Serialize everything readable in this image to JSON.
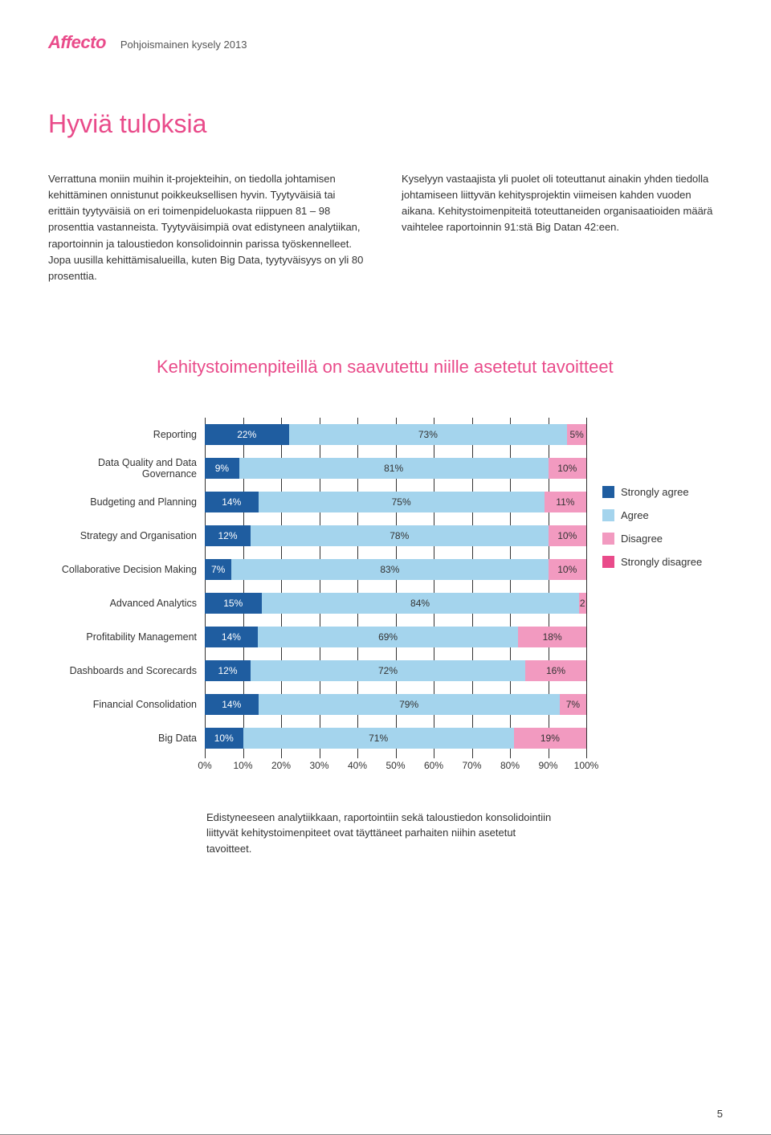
{
  "header": {
    "logo": "Affecto",
    "subtitle": "Pohjoismainen kysely 2013"
  },
  "title": "Hyviä tuloksia",
  "body": {
    "col1": "Verrattuna moniin muihin it-projekteihin, on tiedolla johtamisen kehittäminen onnistunut poikkeuksellisen hyvin. Tyytyväisiä tai erittäin tyytyväisiä on eri toimenpideluokasta riippuen 81 – 98 prosenttia vastanneista. Tyytyväisimpiä ovat edistyneen analytiikan, raportoinnin ja taloustiedon konsolidoinnin parissa työskennelleet. Jopa uusilla kehittämisalueilla, kuten Big Data, tyytyväisyys on yli 80 prosenttia.",
    "col2": "Kyselyyn vastaajista yli puolet oli toteuttanut ainakin yhden tiedolla johtamiseen liittyvän kehitysprojektin viimeisen kahden vuoden aikana. Kehitystoimenpiteitä toteuttaneiden organisaatioiden määrä vaihtelee raportoinnin 91:stä Big Datan 42:een."
  },
  "chart": {
    "title": "Kehitystoimenpiteillä on saavutettu niille asetetut tavoitteet",
    "colors": {
      "strongly_agree": "#1f5da0",
      "agree": "#a4d4ed",
      "disagree": "#f29ac0",
      "strongly_disagree": "#e94b8a",
      "grid": "#333333",
      "background": "#ffffff"
    },
    "legend": {
      "strongly_agree": "Strongly agree",
      "agree": "Agree",
      "disagree": "Disagree",
      "strongly_disagree": "Strongly disagree"
    },
    "xticks": [
      "0%",
      "10%",
      "20%",
      "30%",
      "40%",
      "50%",
      "60%",
      "70%",
      "80%",
      "90%",
      "100%"
    ],
    "rows": [
      {
        "label": "Reporting",
        "segments": [
          {
            "key": "strongly_agree",
            "value": 22,
            "text": "22%"
          },
          {
            "key": "agree",
            "value": 73,
            "text": "73%"
          },
          {
            "key": "disagree",
            "value": 5,
            "text": "5%"
          }
        ]
      },
      {
        "label": "Data Quality and Data Governance",
        "segments": [
          {
            "key": "strongly_agree",
            "value": 9,
            "text": "9%"
          },
          {
            "key": "agree",
            "value": 81,
            "text": "81%"
          },
          {
            "key": "disagree",
            "value": 10,
            "text": "10%"
          }
        ]
      },
      {
        "label": "Budgeting and Planning",
        "segments": [
          {
            "key": "strongly_agree",
            "value": 14,
            "text": "14%"
          },
          {
            "key": "agree",
            "value": 75,
            "text": "75%"
          },
          {
            "key": "disagree",
            "value": 11,
            "text": "11%"
          }
        ]
      },
      {
        "label": "Strategy and Organisation",
        "segments": [
          {
            "key": "strongly_agree",
            "value": 12,
            "text": "12%"
          },
          {
            "key": "agree",
            "value": 78,
            "text": "78%"
          },
          {
            "key": "disagree",
            "value": 10,
            "text": "10%"
          }
        ]
      },
      {
        "label": "Collaborative Decision Making",
        "segments": [
          {
            "key": "strongly_agree",
            "value": 7,
            "text": "7%"
          },
          {
            "key": "agree",
            "value": 83,
            "text": "83%"
          },
          {
            "key": "disagree",
            "value": 10,
            "text": "10%"
          }
        ]
      },
      {
        "label": "Advanced Analytics",
        "segments": [
          {
            "key": "strongly_agree",
            "value": 15,
            "text": "15%"
          },
          {
            "key": "agree",
            "value": 84,
            "text": "84%"
          },
          {
            "key": "disagree",
            "value": 2,
            "text": "2"
          }
        ]
      },
      {
        "label": "Profitability Management",
        "segments": [
          {
            "key": "strongly_agree",
            "value": 14,
            "text": "14%"
          },
          {
            "key": "agree",
            "value": 69,
            "text": "69%"
          },
          {
            "key": "disagree",
            "value": 18,
            "text": "18%"
          }
        ]
      },
      {
        "label": "Dashboards and Scorecards",
        "segments": [
          {
            "key": "strongly_agree",
            "value": 12,
            "text": "12%"
          },
          {
            "key": "agree",
            "value": 72,
            "text": "72%"
          },
          {
            "key": "disagree",
            "value": 16,
            "text": "16%"
          }
        ]
      },
      {
        "label": "Financial Consolidation",
        "segments": [
          {
            "key": "strongly_agree",
            "value": 14,
            "text": "14%"
          },
          {
            "key": "agree",
            "value": 79,
            "text": "79%"
          },
          {
            "key": "disagree",
            "value": 7,
            "text": "7%"
          }
        ]
      },
      {
        "label": "Big Data",
        "segments": [
          {
            "key": "strongly_agree",
            "value": 10,
            "text": "10%"
          },
          {
            "key": "agree",
            "value": 71,
            "text": "71%"
          },
          {
            "key": "disagree",
            "value": 19,
            "text": "19%"
          }
        ]
      }
    ]
  },
  "caption": "Edistyneeseen analytiikkaan, raportointiin sekä taloustiedon konsolidointiin liittyvät kehitystoimenpiteet ovat täyttäneet parhaiten niihin asetetut tavoitteet.",
  "pagenum": "5"
}
